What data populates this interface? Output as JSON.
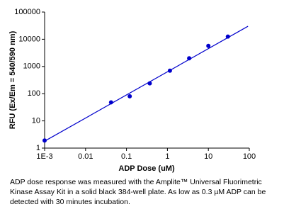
{
  "chart_data": {
    "type": "scatter",
    "x_label": "ADP Dose (uM)",
    "y_label": "RFU (Ex/Em = 540/590 nm)",
    "x_log": true,
    "y_log": true,
    "xlim": [
      0.001,
      100
    ],
    "ylim": [
      1,
      100000
    ],
    "xticks": [
      {
        "value": 0.001,
        "label": "1E-3"
      },
      0.01,
      0.1,
      1,
      10,
      100
    ],
    "yticks": [
      1,
      10,
      100,
      1000,
      10000,
      100000
    ],
    "series": [
      {
        "color": "#0000cc",
        "x": [
          0.001,
          0.042,
          0.12,
          0.37,
          1.15,
          3.4,
          10,
          30
        ],
        "values": [
          1.9,
          48,
          80,
          240,
          700,
          2000,
          5700,
          12500
        ]
      }
    ],
    "fit_line": {
      "color": "#0000cc",
      "x": [
        0.001,
        93
      ],
      "values": [
        1.8,
        30000
      ]
    }
  },
  "caption": "ADP dose response was measured with the Amplite™ Universal Fluorimetric Kinase Assay Kit in a solid black 384-well plate. As low as 0.3 µM ADP can be detected with 30 minutes incubation."
}
